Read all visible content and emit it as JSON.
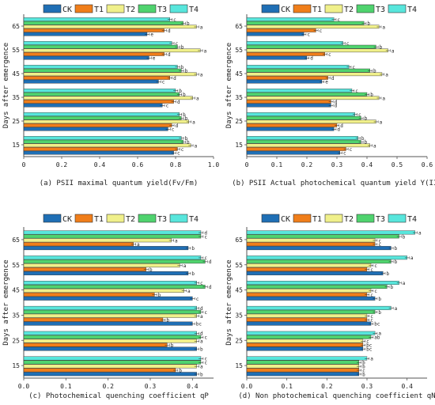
{
  "colors": {
    "CK": "#1f6fb5",
    "T1": "#f07e1a",
    "T2": "#f0f08a",
    "T3": "#4fd36e",
    "T4": "#58e6dc"
  },
  "chart_data": [
    {
      "type": "bar",
      "orientation": "horizontal",
      "caption": "(a)  PSII maximal quantum yield(Fv/Fm)",
      "ylabel": "Days after emergence",
      "categories": [
        "15",
        "25",
        "35",
        "45",
        "55",
        "65"
      ],
      "xlim": [
        0,
        1.0
      ],
      "xticks": [
        "0",
        "0.2",
        "0.4",
        "0.6",
        "0.8",
        "1.0"
      ],
      "legend": [
        "CK",
        "T1",
        "T2",
        "T3",
        "T4"
      ],
      "series": [
        {
          "name": "CK",
          "values": [
            0.79,
            0.76,
            0.73,
            0.71,
            0.66,
            0.65
          ],
          "letters": [
            "c",
            "c",
            "c",
            "c",
            "e",
            "e"
          ]
        },
        {
          "name": "T1",
          "values": [
            0.81,
            0.78,
            0.79,
            0.77,
            0.74,
            0.74
          ],
          "letters": [
            "c",
            "d",
            "d",
            "d",
            "d",
            "d"
          ]
        },
        {
          "name": "T2",
          "values": [
            0.88,
            0.87,
            0.89,
            0.91,
            0.93,
            0.91
          ],
          "letters": [
            "a",
            "a",
            "a",
            "a",
            "a",
            "a"
          ]
        },
        {
          "name": "T3",
          "values": [
            0.84,
            0.83,
            0.82,
            0.83,
            0.81,
            0.84
          ],
          "letters": [
            "b",
            "b",
            "b",
            "b",
            "b",
            "b"
          ]
        },
        {
          "name": "T4",
          "values": [
            0.83,
            0.82,
            0.8,
            0.81,
            0.78,
            0.77
          ],
          "letters": [
            "b",
            "b",
            "b",
            "b",
            "c",
            "c"
          ]
        }
      ]
    },
    {
      "type": "bar",
      "orientation": "horizontal",
      "caption": "(b)  PSII Actual photochemical quantum yield Y(II)",
      "ylabel": "Days after emergence",
      "categories": [
        "15",
        "25",
        "35",
        "45",
        "55",
        "65"
      ],
      "xlim": [
        0,
        0.6
      ],
      "xticks": [
        "0",
        "0.1",
        "0.2",
        "0.3",
        "0.4",
        "0.5",
        "0.6"
      ],
      "legend": [
        "CK",
        "T1",
        "T2",
        "T3",
        "T4"
      ],
      "series": [
        {
          "name": "CK",
          "values": [
            0.31,
            0.29,
            0.28,
            0.25,
            0.2,
            0.19
          ],
          "letters": [
            "c",
            "d",
            "d",
            "e",
            "d",
            "c"
          ]
        },
        {
          "name": "T1",
          "values": [
            0.33,
            0.3,
            0.28,
            0.27,
            0.26,
            0.23
          ],
          "letters": [
            "c",
            "d",
            "d",
            "d",
            "c",
            "c"
          ]
        },
        {
          "name": "T2",
          "values": [
            0.41,
            0.43,
            0.44,
            0.45,
            0.47,
            0.44
          ],
          "letters": [
            "a",
            "a",
            "a",
            "a",
            "a",
            "a"
          ]
        },
        {
          "name": "T3",
          "values": [
            0.38,
            0.38,
            0.4,
            0.41,
            0.43,
            0.39
          ],
          "letters": [
            "b",
            "b",
            "b",
            "b",
            "b",
            "b"
          ]
        },
        {
          "name": "T4",
          "values": [
            0.37,
            0.36,
            0.35,
            0.34,
            0.32,
            0.29
          ],
          "letters": [
            "b",
            "c",
            "c",
            "c",
            "c",
            "c"
          ]
        }
      ]
    },
    {
      "type": "bar",
      "orientation": "horizontal",
      "caption": "(c)  Photochemical quenching coefficient qP",
      "ylabel": "Days after emergence",
      "categories": [
        "15",
        "25",
        "35",
        "45",
        "55",
        "65"
      ],
      "xlim": [
        0,
        0.45
      ],
      "xticks": [
        "0.0",
        "0.1",
        "0.2",
        "0.3",
        "0.4"
      ],
      "legend": [
        "CK",
        "T1",
        "T2",
        "T3",
        "T4"
      ],
      "series": [
        {
          "name": "CK",
          "values": [
            0.41,
            0.41,
            0.4,
            0.4,
            0.39,
            0.39
          ],
          "letters": [
            "b",
            "b",
            "bc",
            "c",
            "b",
            "b"
          ]
        },
        {
          "name": "T1",
          "values": [
            0.36,
            0.34,
            0.33,
            0.31,
            0.29,
            0.26
          ],
          "letters": [
            "b",
            "b",
            "b",
            "b",
            "b",
            "a"
          ]
        },
        {
          "name": "T2",
          "values": [
            0.41,
            0.41,
            0.41,
            0.38,
            0.37,
            0.35
          ],
          "letters": [
            "a",
            "a",
            "a",
            "a",
            "a",
            "a"
          ]
        },
        {
          "name": "T3",
          "values": [
            0.42,
            0.42,
            0.42,
            0.43,
            0.43,
            0.42
          ],
          "letters": [
            "c",
            "c",
            "c",
            "d",
            "d",
            "c"
          ]
        },
        {
          "name": "T4",
          "values": [
            0.42,
            0.41,
            0.41,
            0.41,
            0.42,
            0.42
          ],
          "letters": [
            "c",
            "d",
            "d",
            "c",
            "c",
            "d"
          ]
        }
      ]
    },
    {
      "type": "bar",
      "orientation": "horizontal",
      "caption": "(d)  Non photochemical quenching coefficient qN",
      "ylabel": "Days after emergence",
      "categories": [
        "15",
        "25",
        "35",
        "45",
        "55",
        "65"
      ],
      "xlim": [
        0,
        0.45
      ],
      "xticks": [
        "0.0",
        "0.1",
        "0.2",
        "0.3",
        "0.4"
      ],
      "legend": [
        "CK",
        "T1",
        "T2",
        "T3",
        "T4"
      ],
      "series": [
        {
          "name": "CK",
          "values": [
            0.28,
            0.29,
            0.31,
            0.32,
            0.34,
            0.36
          ],
          "letters": [
            "b",
            "bc",
            "bc",
            "b",
            "b",
            "b"
          ]
        },
        {
          "name": "T1",
          "values": [
            0.28,
            0.29,
            0.3,
            0.3,
            0.3,
            0.32
          ],
          "letters": [
            "c",
            "bc",
            "c",
            "c",
            "c",
            "c"
          ]
        },
        {
          "name": "T2",
          "values": [
            0.28,
            0.29,
            0.3,
            0.31,
            0.31,
            0.32
          ],
          "letters": [
            "b",
            "c",
            "c",
            "c",
            "c",
            "c"
          ]
        },
        {
          "name": "T3",
          "values": [
            0.28,
            0.31,
            0.32,
            0.35,
            0.36,
            0.38
          ],
          "letters": [
            "b",
            "ab",
            "b",
            "b",
            "b",
            "b"
          ]
        },
        {
          "name": "T4",
          "values": [
            0.3,
            0.32,
            0.36,
            0.38,
            0.4,
            0.42
          ],
          "letters": [
            "a",
            "a",
            "a",
            "a",
            "a",
            "a"
          ]
        }
      ]
    }
  ]
}
